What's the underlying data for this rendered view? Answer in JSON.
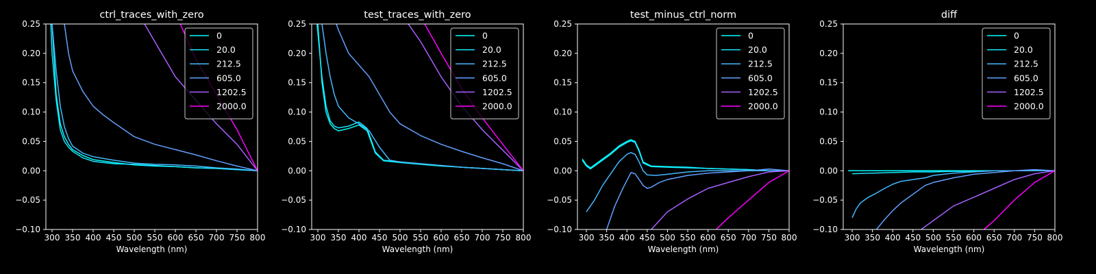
{
  "figure": {
    "background": "#000000",
    "foreground": "#ffffff"
  },
  "chart_data": [
    {
      "type": "line",
      "title": "ctrl_traces_with_zero",
      "xlabel": "Wavelength (nm)",
      "ylabel": "",
      "xlim": [
        285,
        800
      ],
      "ylim": [
        -0.1,
        0.25
      ],
      "xticks": [
        300,
        350,
        400,
        450,
        500,
        550,
        600,
        650,
        700,
        750,
        800
      ],
      "yticks": [
        -0.1,
        -0.05,
        0.0,
        0.05,
        0.1,
        0.15,
        0.2,
        0.25
      ],
      "legend": "top-right",
      "grid": false,
      "series": [
        {
          "name": "0",
          "color": "#00ffff",
          "x": [
            300,
            310,
            320,
            330,
            340,
            350,
            375,
            400,
            450,
            500,
            550,
            600,
            650,
            700,
            750,
            800
          ],
          "y": [
            0.25,
            0.13,
            0.08,
            0.058,
            0.045,
            0.036,
            0.026,
            0.019,
            0.014,
            0.01,
            0.008,
            0.007,
            0.005,
            0.004,
            0.002,
            0.0
          ]
        },
        {
          "name": "20.0",
          "color": "#17e8ff",
          "x": [
            297,
            300,
            310,
            320,
            330,
            340,
            350,
            375,
            400,
            450,
            500,
            550,
            600,
            650,
            700,
            750,
            800
          ],
          "y": [
            0.25,
            0.2,
            0.12,
            0.07,
            0.05,
            0.04,
            0.033,
            0.022,
            0.016,
            0.012,
            0.011,
            0.009,
            0.007,
            0.005,
            0.004,
            0.002,
            0.0
          ]
        },
        {
          "name": "212.5",
          "color": "#45baff",
          "x": [
            300,
            310,
            320,
            330,
            340,
            350,
            375,
            400,
            450,
            500,
            550,
            600,
            650,
            700,
            750,
            800
          ],
          "y": [
            0.25,
            0.17,
            0.11,
            0.075,
            0.055,
            0.042,
            0.03,
            0.024,
            0.018,
            0.013,
            0.011,
            0.01,
            0.008,
            0.005,
            0.003,
            0.0
          ]
        },
        {
          "name": "605.0",
          "color": "#62a0ff",
          "x": [
            330,
            340,
            350,
            375,
            400,
            425,
            450,
            475,
            500,
            550,
            600,
            650,
            700,
            750,
            800
          ],
          "y": [
            0.25,
            0.2,
            0.17,
            0.135,
            0.11,
            0.095,
            0.082,
            0.07,
            0.058,
            0.045,
            0.036,
            0.027,
            0.017,
            0.008,
            0.0
          ]
        },
        {
          "name": "1202.5",
          "color": "#a761ff",
          "x": [
            525,
            550,
            575,
            600,
            650,
            700,
            750,
            800
          ],
          "y": [
            0.25,
            0.22,
            0.19,
            0.16,
            0.12,
            0.08,
            0.045,
            0.0
          ]
        },
        {
          "name": "2000.0",
          "color": "#ff00ff",
          "x": [
            612,
            650,
            700,
            750,
            800
          ],
          "y": [
            0.25,
            0.19,
            0.13,
            0.07,
            0.0
          ]
        }
      ]
    },
    {
      "type": "line",
      "title": "test_traces_with_zero",
      "xlabel": "Wavelength (nm)",
      "ylabel": "",
      "xlim": [
        285,
        800
      ],
      "ylim": [
        -0.1,
        0.25
      ],
      "xticks": [
        300,
        350,
        400,
        450,
        500,
        550,
        600,
        650,
        700,
        750,
        800
      ],
      "yticks": [
        -0.1,
        -0.05,
        0.0,
        0.05,
        0.1,
        0.15,
        0.2,
        0.25
      ],
      "legend": "top-right",
      "grid": false,
      "series": [
        {
          "name": "0",
          "color": "#00ffff",
          "x": [
            300,
            310,
            320,
            330,
            340,
            350,
            375,
            400,
            420,
            440,
            460,
            500,
            550,
            600,
            650,
            700,
            750,
            800
          ],
          "y": [
            0.25,
            0.15,
            0.1,
            0.08,
            0.072,
            0.068,
            0.072,
            0.078,
            0.068,
            0.03,
            0.017,
            0.014,
            0.011,
            0.008,
            0.006,
            0.004,
            0.002,
            0.0
          ]
        },
        {
          "name": "20.0",
          "color": "#17e8ff",
          "x": [
            298,
            310,
            320,
            330,
            340,
            350,
            375,
            400,
            420,
            440,
            460,
            500,
            550,
            600,
            650,
            700,
            750,
            800
          ],
          "y": [
            0.25,
            0.16,
            0.11,
            0.085,
            0.076,
            0.073,
            0.076,
            0.083,
            0.072,
            0.032,
            0.018,
            0.015,
            0.012,
            0.009,
            0.006,
            0.004,
            0.002,
            0.0
          ]
        },
        {
          "name": "212.5",
          "color": "#45baff",
          "x": [
            310,
            320,
            330,
            340,
            350,
            375,
            400,
            425,
            450,
            475,
            500,
            550,
            600,
            650,
            700,
            750,
            800
          ],
          "y": [
            0.25,
            0.2,
            0.16,
            0.13,
            0.11,
            0.09,
            0.08,
            0.068,
            0.04,
            0.018,
            0.015,
            0.012,
            0.009,
            0.006,
            0.004,
            0.002,
            0.0
          ]
        },
        {
          "name": "605.0",
          "color": "#62a0ff",
          "x": [
            345,
            350,
            375,
            400,
            425,
            450,
            475,
            500,
            550,
            600,
            650,
            700,
            750,
            800
          ],
          "y": [
            0.25,
            0.24,
            0.2,
            0.18,
            0.16,
            0.13,
            0.1,
            0.08,
            0.06,
            0.045,
            0.033,
            0.022,
            0.012,
            0.0
          ]
        },
        {
          "name": "1202.5",
          "color": "#a761ff",
          "x": [
            520,
            550,
            575,
            600,
            650,
            700,
            750,
            800
          ],
          "y": [
            0.25,
            0.22,
            0.19,
            0.16,
            0.11,
            0.07,
            0.035,
            0.0
          ]
        },
        {
          "name": "2000.0",
          "color": "#ff00ff",
          "x": [
            560,
            600,
            650,
            700,
            750,
            800
          ],
          "y": [
            0.25,
            0.2,
            0.14,
            0.09,
            0.045,
            0.0
          ]
        }
      ]
    },
    {
      "type": "line",
      "title": "test_minus_ctrl_norm",
      "xlabel": "Wavelength (nm)",
      "ylabel": "",
      "xlim": [
        278,
        800
      ],
      "ylim": [
        -0.1,
        0.25
      ],
      "xticks": [
        300,
        350,
        400,
        450,
        500,
        550,
        600,
        650,
        700,
        750,
        800
      ],
      "yticks": [
        -0.1,
        -0.05,
        0.0,
        0.05,
        0.1,
        0.15,
        0.2,
        0.25
      ],
      "legend": "top-right",
      "grid": false,
      "series": [
        {
          "name": "0",
          "color": "#00ffff",
          "x": [
            290,
            300,
            310,
            320,
            340,
            360,
            380,
            400,
            410,
            420,
            430,
            440,
            460,
            500,
            550,
            600,
            650,
            700,
            750,
            800
          ],
          "y": [
            0.02,
            0.01,
            0.005,
            0.01,
            0.02,
            0.03,
            0.042,
            0.05,
            0.053,
            0.05,
            0.035,
            0.015,
            0.008,
            0.007,
            0.006,
            0.004,
            0.003,
            0.002,
            0.0,
            0.0
          ]
        },
        {
          "name": "20.0",
          "color": "#17e8ff",
          "x": [
            290,
            300,
            310,
            320,
            340,
            360,
            380,
            400,
            410,
            420,
            430,
            440,
            460,
            500,
            550,
            600,
            650,
            700,
            750,
            800
          ],
          "y": [
            0.018,
            0.008,
            0.003,
            0.008,
            0.018,
            0.028,
            0.04,
            0.048,
            0.051,
            0.048,
            0.033,
            0.013,
            0.007,
            0.006,
            0.005,
            0.004,
            0.003,
            0.002,
            0.0,
            0.0
          ]
        },
        {
          "name": "212.5",
          "color": "#45baff",
          "x": [
            300,
            320,
            340,
            360,
            380,
            400,
            410,
            420,
            430,
            440,
            450,
            470,
            500,
            550,
            600,
            650,
            700,
            750,
            800
          ],
          "y": [
            -0.07,
            -0.05,
            -0.025,
            -0.005,
            0.015,
            0.028,
            0.031,
            0.028,
            0.015,
            0.0,
            -0.007,
            -0.008,
            -0.006,
            -0.002,
            0.0,
            0.0,
            0.0,
            0.0,
            0.0
          ]
        },
        {
          "name": "605.0",
          "color": "#62a0ff",
          "x": [
            350,
            370,
            390,
            410,
            420,
            430,
            440,
            450,
            460,
            480,
            500,
            550,
            600,
            650,
            700,
            750,
            800
          ],
          "y": [
            -0.1,
            -0.06,
            -0.03,
            -0.003,
            -0.005,
            -0.015,
            -0.025,
            -0.03,
            -0.028,
            -0.02,
            -0.015,
            -0.008,
            -0.004,
            -0.002,
            0.0,
            0.003,
            0.0
          ]
        },
        {
          "name": "1202.5",
          "color": "#a761ff",
          "x": [
            460,
            500,
            550,
            600,
            650,
            700,
            750,
            800
          ],
          "y": [
            -0.1,
            -0.07,
            -0.048,
            -0.03,
            -0.02,
            -0.01,
            -0.002,
            0.0
          ]
        },
        {
          "name": "2000.0",
          "color": "#ff00ff",
          "x": [
            620,
            650,
            700,
            750,
            800
          ],
          "y": [
            -0.1,
            -0.08,
            -0.05,
            -0.02,
            0.0
          ]
        }
      ]
    },
    {
      "type": "line",
      "title": "diff",
      "xlabel": "Wavelength (nm)",
      "ylabel": "",
      "xlim": [
        278,
        800
      ],
      "ylim": [
        -0.1,
        0.25
      ],
      "xticks": [
        300,
        350,
        400,
        450,
        500,
        550,
        600,
        650,
        700,
        750,
        800
      ],
      "yticks": [
        -0.1,
        -0.05,
        0.0,
        0.05,
        0.1,
        0.15,
        0.2,
        0.25
      ],
      "legend": "top-right",
      "grid": false,
      "series": [
        {
          "name": "0",
          "color": "#00ffff",
          "x": [
            290,
            400,
            500,
            600,
            700,
            800
          ],
          "y": [
            0.0,
            0.0,
            0.0,
            0.0,
            0.0,
            0.0
          ]
        },
        {
          "name": "20.0",
          "color": "#17e8ff",
          "x": [
            300,
            350,
            400,
            450,
            500,
            550,
            600,
            650,
            700,
            750,
            800
          ],
          "y": [
            -0.005,
            -0.004,
            -0.003,
            -0.002,
            -0.002,
            -0.001,
            -0.001,
            0.0,
            0.0,
            0.0,
            0.0
          ]
        },
        {
          "name": "212.5",
          "color": "#45baff",
          "x": [
            300,
            310,
            320,
            340,
            360,
            380,
            400,
            420,
            440,
            460,
            480,
            500,
            550,
            600,
            650,
            700,
            750,
            800
          ],
          "y": [
            -0.08,
            -0.065,
            -0.055,
            -0.045,
            -0.038,
            -0.03,
            -0.023,
            -0.018,
            -0.016,
            -0.014,
            -0.012,
            -0.008,
            -0.004,
            -0.002,
            0.0,
            0.0,
            0.0,
            0.0
          ]
        },
        {
          "name": "605.0",
          "color": "#62a0ff",
          "x": [
            360,
            380,
            400,
            420,
            440,
            460,
            480,
            500,
            550,
            600,
            650,
            700,
            750,
            800
          ],
          "y": [
            -0.1,
            -0.083,
            -0.068,
            -0.055,
            -0.045,
            -0.035,
            -0.025,
            -0.02,
            -0.012,
            -0.006,
            -0.003,
            0.0,
            0.002,
            0.0
          ]
        },
        {
          "name": "1202.5",
          "color": "#a761ff",
          "x": [
            470,
            500,
            550,
            600,
            650,
            700,
            750,
            800
          ],
          "y": [
            -0.1,
            -0.085,
            -0.06,
            -0.045,
            -0.03,
            -0.015,
            -0.005,
            0.0
          ]
        },
        {
          "name": "2000.0",
          "color": "#ff00ff",
          "x": [
            625,
            650,
            700,
            750,
            800
          ],
          "y": [
            -0.1,
            -0.085,
            -0.05,
            -0.02,
            0.0
          ]
        }
      ]
    }
  ]
}
